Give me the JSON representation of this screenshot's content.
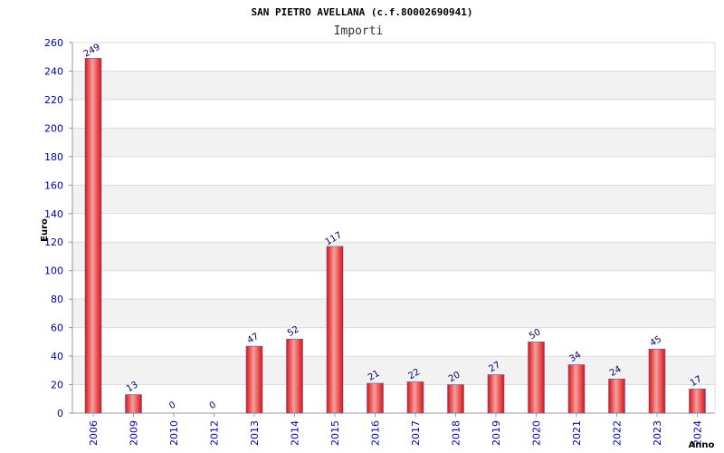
{
  "chart_data": {
    "type": "bar",
    "title": "SAN PIETRO AVELLANA (c.f.80002690941)",
    "subtitle": "Importi",
    "ylabel": "Euro",
    "xlabel": "Anno",
    "ylim": [
      0,
      260
    ],
    "yticks": [
      0,
      20,
      40,
      60,
      80,
      100,
      120,
      140,
      160,
      180,
      200,
      220,
      240,
      260
    ],
    "grid": true,
    "categories": [
      "2006",
      "2009",
      "2010",
      "2012",
      "2013",
      "2014",
      "2015",
      "2016",
      "2017",
      "2018",
      "2019",
      "2020",
      "2021",
      "2022",
      "2023",
      "2024"
    ],
    "values": [
      249,
      13,
      0,
      0,
      47,
      52,
      117,
      21,
      22,
      20,
      27,
      50,
      34,
      24,
      45,
      17
    ],
    "colors": {
      "bar_center": "#f4a0a0",
      "bar_edge": "#dd1111",
      "bar_outline": "#5566aa",
      "band": "#f2f2f2",
      "tick_text": "#0000aa",
      "label_text": "#000066"
    }
  }
}
